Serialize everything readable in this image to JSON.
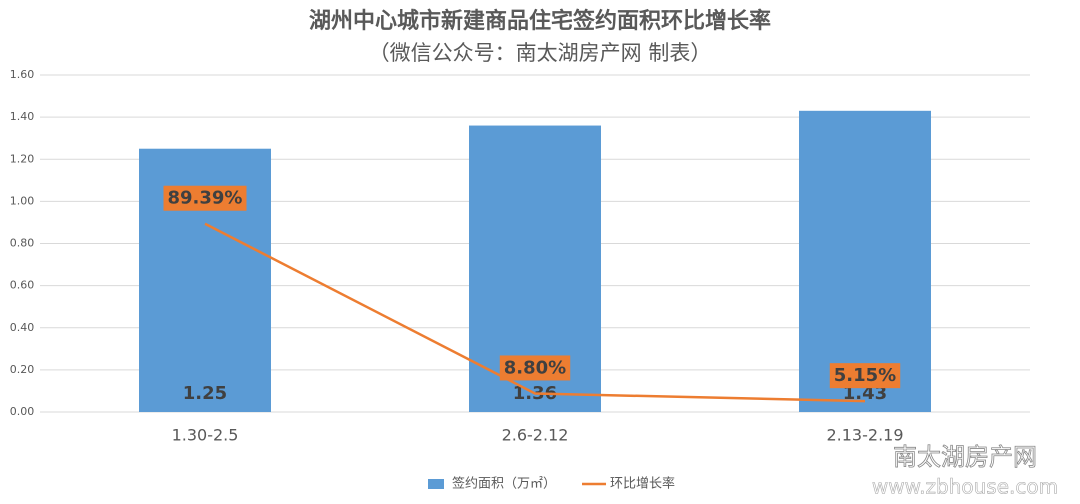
{
  "chart_data": {
    "type": "combo",
    "title": "湖州中心城市新建商品住宅签约面积环比增长率",
    "subtitle": "（微信公众号：南太湖房产网 制表）",
    "categories": [
      "1.30-2.5",
      "2.6-2.12",
      "2.13-2.19"
    ],
    "series": [
      {
        "name": "签约面积（万㎡）",
        "type": "bar",
        "color": "#5b9bd5",
        "values": [
          1.25,
          1.36,
          1.43
        ]
      },
      {
        "name": "环比增长率",
        "type": "line",
        "color": "#ed7d31",
        "values": [
          0.8939,
          0.088,
          0.0515
        ],
        "value_labels": [
          "89.39%",
          "8.80%",
          "5.15%"
        ]
      }
    ],
    "ylim": [
      0,
      1.6
    ],
    "yticks": [
      {
        "value": 0,
        "label": "0.00"
      },
      {
        "value": 0.2,
        "label": "0.20"
      },
      {
        "value": 0.4,
        "label": "0.40"
      },
      {
        "value": 0.6,
        "label": "0.60"
      },
      {
        "value": 0.8,
        "label": "0.80"
      },
      {
        "value": 1.0,
        "label": "1.00"
      },
      {
        "value": 1.2,
        "label": "1.20"
      },
      {
        "value": 1.4,
        "label": "1.40"
      },
      {
        "value": 1.6,
        "label": "1.60"
      }
    ],
    "grid": true,
    "legend": "bottom",
    "annotations": [
      "南太湖房产网",
      "www.zbhouse.com"
    ]
  }
}
